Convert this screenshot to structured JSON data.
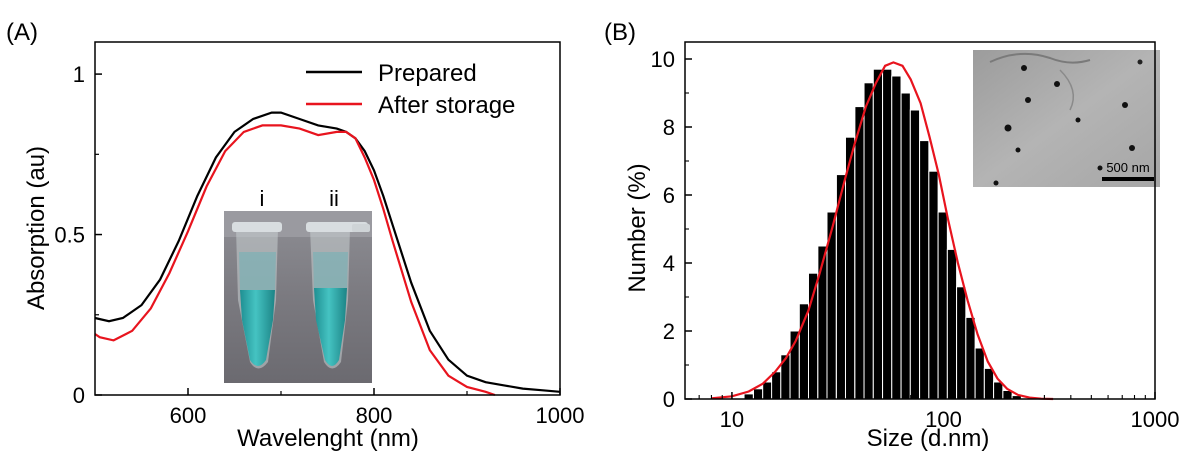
{
  "figure": {
    "panel_a_label": "(A)",
    "panel_b_label": "(B)"
  },
  "colors": {
    "prepared": "#000000",
    "after_storage": "#e8141e",
    "bars": "#000000",
    "fit": "#e8141e"
  },
  "inset_a": {
    "tube_labels": [
      "i",
      "ii"
    ]
  },
  "inset_b": {
    "scale_bar_label": "500 nm"
  },
  "chart_data": [
    {
      "type": "line",
      "xlabel": "Wavelenght (nm)",
      "ylabel": "Absorption (au)",
      "xlim": [
        500,
        1000
      ],
      "ylim": [
        0,
        1.1
      ],
      "xticks": [
        600,
        800,
        1000
      ],
      "xtick_labels": [
        "600",
        "800",
        "1000"
      ],
      "yticks": [
        0,
        0.5,
        1
      ],
      "ytick_labels": [
        "0",
        "0.5",
        "1"
      ],
      "legend_position": "top-right",
      "grid": false,
      "series": [
        {
          "name": "Prepared",
          "x": [
            500,
            515,
            530,
            550,
            570,
            590,
            610,
            630,
            650,
            670,
            690,
            700,
            720,
            740,
            760,
            770,
            780,
            790,
            800,
            810,
            820,
            840,
            860,
            880,
            900,
            920,
            940,
            960,
            980,
            1000
          ],
          "y": [
            0.24,
            0.23,
            0.24,
            0.28,
            0.36,
            0.48,
            0.62,
            0.74,
            0.82,
            0.86,
            0.88,
            0.88,
            0.86,
            0.84,
            0.83,
            0.82,
            0.8,
            0.76,
            0.7,
            0.62,
            0.53,
            0.35,
            0.2,
            0.11,
            0.06,
            0.04,
            0.03,
            0.02,
            0.015,
            0.01
          ]
        },
        {
          "name": "After storage",
          "x": [
            500,
            505,
            520,
            540,
            560,
            580,
            600,
            620,
            640,
            660,
            680,
            700,
            720,
            740,
            760,
            770,
            780,
            790,
            800,
            810,
            820,
            840,
            860,
            880,
            900,
            920,
            930
          ],
          "y": [
            0.19,
            0.18,
            0.17,
            0.2,
            0.27,
            0.38,
            0.51,
            0.65,
            0.76,
            0.82,
            0.84,
            0.84,
            0.83,
            0.81,
            0.82,
            0.82,
            0.8,
            0.74,
            0.67,
            0.58,
            0.48,
            0.29,
            0.14,
            0.06,
            0.025,
            0.01,
            0.0
          ]
        }
      ]
    },
    {
      "type": "bar",
      "xscale": "log",
      "xlabel": "Size (d.nm)",
      "ylabel": "Number (%)",
      "xlim": [
        6,
        1000
      ],
      "ylim": [
        0,
        10.5
      ],
      "xticks": [
        10,
        100,
        1000
      ],
      "xtick_labels": [
        "10",
        "100",
        "1000"
      ],
      "yticks": [
        0,
        2,
        4,
        6,
        8,
        10
      ],
      "ytick_labels": [
        "0",
        "2",
        "4",
        "6",
        "8",
        "10"
      ],
      "grid": false,
      "bin_ratio": 1.106,
      "x": [
        12.0,
        13.3,
        14.7,
        16.2,
        17.9,
        19.8,
        21.9,
        24.2,
        26.8,
        29.6,
        32.8,
        36.2,
        40.1,
        44.3,
        49.0,
        54.2,
        59.9,
        66.3,
        73.3,
        81.1,
        89.7,
        99.2,
        109.7,
        121.3,
        134.2,
        148.4,
        164.1,
        181.5,
        200.8,
        222.0
      ],
      "values": [
        0.15,
        0.3,
        0.5,
        0.8,
        1.3,
        2.0,
        2.8,
        3.7,
        4.5,
        5.5,
        6.6,
        7.7,
        8.6,
        9.3,
        9.7,
        9.7,
        9.5,
        9.0,
        8.5,
        7.6,
        6.7,
        5.5,
        4.4,
        3.3,
        2.4,
        1.5,
        0.9,
        0.5,
        0.25,
        0.1
      ],
      "fit": {
        "x": [
          8,
          10,
          12,
          14,
          16,
          18,
          20,
          23,
          26,
          30,
          34,
          38,
          43,
          48,
          53,
          58,
          64,
          70,
          78,
          86,
          95,
          105,
          117,
          130,
          145,
          162,
          180,
          200,
          225,
          255,
          290,
          330
        ],
        "y": [
          0.02,
          0.08,
          0.22,
          0.45,
          0.8,
          1.2,
          1.7,
          2.6,
          3.7,
          5.1,
          6.4,
          7.5,
          8.6,
          9.3,
          9.8,
          9.9,
          9.8,
          9.4,
          8.7,
          7.7,
          6.6,
          5.3,
          4.0,
          2.9,
          1.9,
          1.1,
          0.6,
          0.3,
          0.12,
          0.04,
          0.01,
          0.0
        ]
      }
    }
  ]
}
